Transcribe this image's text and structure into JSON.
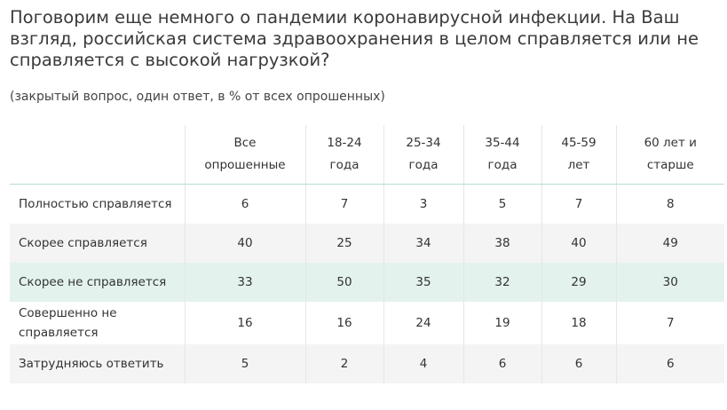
{
  "question": {
    "title": "Поговорим еще немного о пандемии коронавирусной инфекции. На Ваш взгляд, российская система здравоохранения в целом справляется или не справляется с высокой нагрузкой?",
    "note": "(закрытый вопрос, один ответ, в % от всех опрошенных)"
  },
  "table": {
    "headers": [
      [
        "Все",
        "опрошенные"
      ],
      [
        "18-24",
        "года"
      ],
      [
        "25-34",
        "года"
      ],
      [
        "35-44",
        "года"
      ],
      [
        "45-59",
        "лет"
      ],
      [
        "60 лет и",
        "старше"
      ]
    ],
    "rows": [
      {
        "label": [
          "Полностью справляется"
        ],
        "values": [
          "6",
          "7",
          "3",
          "5",
          "7",
          "8"
        ]
      },
      {
        "label": [
          "Скорее справляется"
        ],
        "values": [
          "40",
          "25",
          "34",
          "38",
          "40",
          "49"
        ]
      },
      {
        "label": [
          "Скорее не справляется"
        ],
        "values": [
          "33",
          "50",
          "35",
          "32",
          "29",
          "30"
        ]
      },
      {
        "label": [
          "Совершенно не",
          "справляется"
        ],
        "values": [
          "16",
          "16",
          "24",
          "19",
          "18",
          "7"
        ]
      },
      {
        "label": [
          "Затрудняюсь ответить"
        ],
        "values": [
          "5",
          "2",
          "4",
          "6",
          "6",
          "6"
        ]
      }
    ]
  },
  "colors": {
    "header_rule": "#b9ddd2",
    "shaded_row": "#f4f4f4",
    "accent_row": "#e3f2ed"
  }
}
